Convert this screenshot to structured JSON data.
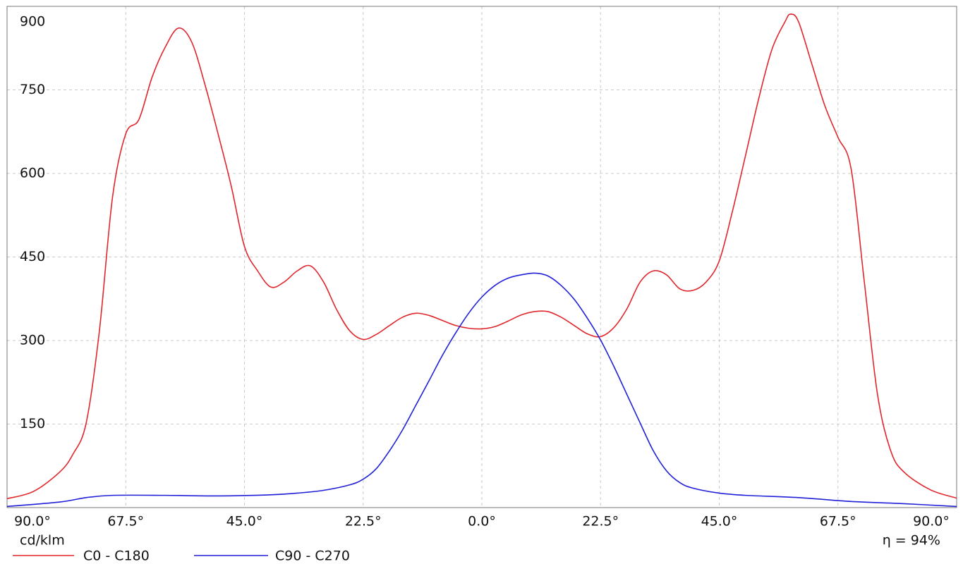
{
  "chart_data": {
    "type": "line",
    "y_label": "cd/klm",
    "annotation": "η = 94%",
    "xlim": [
      -90,
      90
    ],
    "ylim": [
      0,
      900
    ],
    "xticks": [
      {
        "value": -90,
        "label": "90.0°"
      },
      {
        "value": -67.5,
        "label": "67.5°"
      },
      {
        "value": -45,
        "label": "45.0°"
      },
      {
        "value": -22.5,
        "label": "22.5°"
      },
      {
        "value": 0,
        "label": "0.0°"
      },
      {
        "value": 22.5,
        "label": "22.5°"
      },
      {
        "value": 45,
        "label": "45.0°"
      },
      {
        "value": 67.5,
        "label": "67.5°"
      },
      {
        "value": 90,
        "label": "90.0°"
      }
    ],
    "yticks": [
      150,
      300,
      450,
      600,
      750,
      900
    ],
    "grid": true,
    "series": [
      {
        "name": "C0 - C180",
        "color": "#e0262b",
        "x": [
          -90,
          -85,
          -80,
          -77.5,
          -75,
          -72.5,
          -70,
          -67.5,
          -65,
          -62.5,
          -60,
          -57.5,
          -55,
          -52.5,
          -50,
          -47.5,
          -45,
          -42.5,
          -40,
          -37.5,
          -35,
          -32.5,
          -30,
          -27.5,
          -25,
          -22.5,
          -20,
          -17.5,
          -15,
          -12.5,
          -10,
          -7.5,
          -5,
          -2.5,
          0,
          2.5,
          5,
          7.5,
          10,
          12.5,
          15,
          17.5,
          20,
          22.5,
          25,
          27.5,
          30,
          32.5,
          35,
          37.5,
          40,
          42.5,
          45,
          47.5,
          50,
          52.5,
          55,
          57.5,
          58.5,
          60,
          62.5,
          65,
          67.5,
          70,
          72.5,
          75,
          77.5,
          80,
          85,
          90
        ],
        "values": [
          16,
          29,
          64,
          96,
          152,
          317,
          558,
          671,
          697,
          773,
          827,
          861,
          836,
          760,
          671,
          577,
          469,
          425,
          396,
          405,
          425,
          434,
          405,
          355,
          317,
          302,
          311,
          327,
          342,
          349,
          345,
          336,
          327,
          322,
          321,
          325,
          335,
          346,
          352,
          352,
          342,
          327,
          312,
          307,
          323,
          357,
          405,
          425,
          418,
          393,
          390,
          405,
          443,
          532,
          633,
          735,
          823,
          873,
          886,
          873,
          798,
          722,
          665,
          608,
          405,
          203,
          102,
          64,
          32,
          17
        ]
      },
      {
        "name": "C90 - C270",
        "color": "#2020d8",
        "x": [
          -90,
          -80,
          -75,
          -70,
          -60,
          -50,
          -40,
          -35,
          -30,
          -25,
          -22.5,
          -20,
          -17.5,
          -15,
          -12.5,
          -10,
          -7.5,
          -5,
          -2.5,
          0,
          2.5,
          5,
          7.5,
          10,
          12.5,
          15,
          17.5,
          20,
          22.5,
          25,
          27.5,
          30,
          32.5,
          35,
          37.5,
          40,
          45,
          50,
          60,
          70,
          80,
          90
        ],
        "values": [
          2,
          10,
          18,
          22,
          22,
          21,
          23,
          26,
          31,
          41,
          51,
          70,
          102,
          140,
          184,
          228,
          273,
          313,
          349,
          378,
          399,
          412,
          418,
          421,
          416,
          399,
          374,
          340,
          301,
          254,
          203,
          152,
          102,
          66,
          45,
          35,
          26,
          22,
          18,
          11,
          7,
          2
        ]
      }
    ]
  }
}
